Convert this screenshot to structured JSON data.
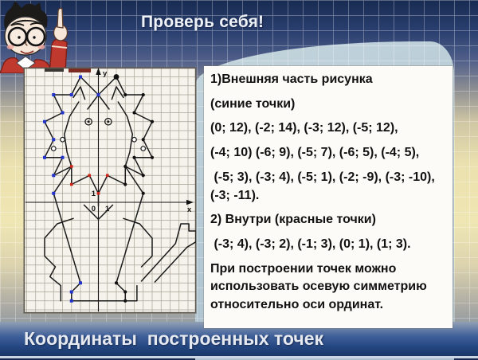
{
  "header": {
    "title": "Проверь себя!"
  },
  "footer": {
    "title": "Координаты  построенных точек"
  },
  "panel": {
    "paragraphs": [
      "1)Внешняя часть рисунка",
      "(синие точки)",
      "(0; 12), (-2; 14), (-3; 12), (-5; 12),",
      "(-4; 10) (-6; 9), (-5; 7), (-6; 5), (-4; 5),",
      " (-5; 3), (-3; 4), (-5; 1), (-2; -9), (-3; -10), (-3; -11).",
      "2) Внутри (красные точки)",
      " (-3; 4), (-3; 2), (-1; 3), (0; 1), (1; 3).",
      "При построении точек можно использовать осевую симметрию относительно оси ординат."
    ]
  },
  "graph": {
    "x_label": "х",
    "y_label": "у",
    "origin_label": "0",
    "unit_x_label": "1",
    "unit_y_label": "1",
    "grid_line_color": "#aaa396"
  },
  "figure": {
    "stroke_color": "#1a1a1a",
    "blue": "#2233cc",
    "red": "#cc2418",
    "strokes": [
      {
        "name": "outer-left",
        "pts": [
          [
            0,
            12
          ],
          [
            -2,
            14
          ],
          [
            -3,
            12
          ],
          [
            -5,
            12
          ],
          [
            -4,
            10
          ],
          [
            -6,
            9
          ],
          [
            -5,
            7
          ],
          [
            -6,
            5
          ],
          [
            -4,
            5
          ],
          [
            -5,
            3
          ],
          [
            -3,
            4
          ],
          [
            -5,
            1
          ],
          [
            -2,
            -9
          ],
          [
            -3,
            -10
          ],
          [
            -3,
            -11
          ]
        ]
      },
      {
        "name": "outer-right",
        "pts": [
          [
            0,
            12
          ],
          [
            2,
            14
          ],
          [
            3,
            12
          ],
          [
            5,
            12
          ],
          [
            4,
            10
          ],
          [
            6,
            9
          ],
          [
            5,
            7
          ],
          [
            6,
            5
          ],
          [
            4,
            5
          ],
          [
            5,
            3
          ],
          [
            3,
            4
          ],
          [
            5,
            1
          ],
          [
            2,
            -9
          ],
          [
            3,
            -10
          ],
          [
            3,
            -11
          ]
        ]
      },
      {
        "name": "bottom-paws",
        "pts": [
          [
            -3,
            -11
          ],
          [
            4.3,
            -11
          ],
          [
            4.3,
            -9.3
          ]
        ]
      },
      {
        "name": "face-left",
        "pts": [
          [
            -2.2,
            11.2
          ],
          [
            -3.2,
            9.6
          ],
          [
            -3.8,
            7.6
          ],
          [
            -3.5,
            5.6
          ],
          [
            -3,
            4
          ]
        ]
      },
      {
        "name": "face-right",
        "pts": [
          [
            2.2,
            11.2
          ],
          [
            3.2,
            9.6
          ],
          [
            3.8,
            7.6
          ],
          [
            3.5,
            5.6
          ],
          [
            3,
            4
          ]
        ]
      },
      {
        "name": "brow",
        "pts": [
          [
            -1.2,
            10.4
          ],
          [
            0,
            12
          ],
          [
            1.2,
            10.4
          ]
        ]
      },
      {
        "name": "ear-inner-left",
        "pts": [
          [
            -1.5,
            11.5
          ],
          [
            -2,
            12.9
          ],
          [
            -2.8,
            11.7
          ]
        ]
      },
      {
        "name": "ear-inner-right",
        "pts": [
          [
            1.5,
            11.5
          ],
          [
            2,
            12.9
          ],
          [
            2.8,
            11.7
          ]
        ]
      },
      {
        "name": "mouth",
        "pts": [
          [
            -3,
            4
          ],
          [
            -3,
            2
          ],
          [
            -1,
            3
          ],
          [
            0,
            1
          ],
          [
            1,
            3
          ],
          [
            3,
            2
          ],
          [
            3,
            4
          ]
        ]
      },
      {
        "name": "nose",
        "pts": [
          [
            0,
            1
          ],
          [
            0,
            -0.4
          ]
        ]
      },
      {
        "name": "chin",
        "pts": [
          [
            -1.6,
            -0.3
          ],
          [
            0,
            -1.9
          ],
          [
            1.6,
            -0.3
          ]
        ]
      },
      {
        "name": "hind-leg-left",
        "pts": [
          [
            -2.8,
            -1.8
          ],
          [
            -4.6,
            -2.4
          ],
          [
            -6,
            -4
          ],
          [
            -6,
            -6
          ],
          [
            -4.8,
            -7.2
          ],
          [
            -5.4,
            -8.3
          ],
          [
            -4.2,
            -9.3
          ],
          [
            -4.2,
            -11
          ]
        ]
      },
      {
        "name": "hind-leg-right",
        "pts": [
          [
            2.8,
            -1.8
          ],
          [
            4.6,
            -2.4
          ],
          [
            6,
            -4
          ],
          [
            6,
            -6
          ],
          [
            4.8,
            -7.2
          ]
        ]
      },
      {
        "name": "tail",
        "pts": [
          [
            4.8,
            -8.8
          ],
          [
            8.6,
            -4.6
          ],
          [
            9.2,
            -2.4
          ],
          [
            10.1,
            -2.4
          ],
          [
            10.1,
            -3.2
          ],
          [
            10.9,
            -3.2
          ],
          [
            10.9,
            -4.4
          ],
          [
            9.9,
            -5
          ],
          [
            6.3,
            -8.9
          ]
        ]
      }
    ],
    "blue_points": [
      [
        0,
        12
      ],
      [
        -2,
        14
      ],
      [
        -3,
        12
      ],
      [
        -5,
        12
      ],
      [
        -4,
        10
      ],
      [
        -6,
        9
      ],
      [
        -5,
        7
      ],
      [
        -6,
        5
      ],
      [
        -4,
        5
      ],
      [
        -5,
        3
      ],
      [
        -5,
        1
      ],
      [
        -2,
        -9
      ],
      [
        -3,
        -10
      ],
      [
        -3,
        -11
      ]
    ],
    "red_points": [
      [
        -3,
        4
      ],
      [
        -3,
        2
      ],
      [
        -1,
        3
      ],
      [
        0,
        1
      ],
      [
        1,
        3
      ]
    ],
    "black_points": [
      [
        3,
        12
      ],
      [
        5,
        12
      ],
      [
        4,
        10
      ],
      [
        6,
        9
      ],
      [
        5,
        7
      ],
      [
        6,
        5
      ],
      [
        4,
        5
      ],
      [
        5,
        3
      ],
      [
        3,
        4
      ],
      [
        3,
        2
      ],
      [
        5,
        1
      ],
      [
        2,
        -9
      ],
      [
        3,
        -10
      ],
      [
        3,
        -11
      ]
    ],
    "big_point": [
      2,
      14
    ],
    "open_circles": [
      [
        -4,
        7
      ],
      [
        -5,
        6
      ],
      [
        4,
        7
      ],
      [
        5,
        6
      ]
    ],
    "eyes": [
      [
        -1.1,
        9
      ],
      [
        1.1,
        9
      ]
    ]
  }
}
